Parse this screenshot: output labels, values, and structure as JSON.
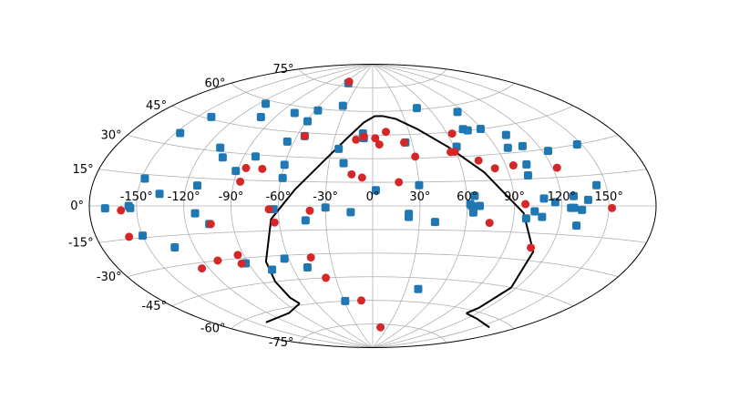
{
  "chart_data": {
    "type": "scatter",
    "projection": "aitoff",
    "grid": true,
    "x_ticks": [
      -150,
      -120,
      -90,
      -60,
      -30,
      0,
      30,
      60,
      90,
      120,
      150
    ],
    "y_ticks": [
      -75,
      -60,
      -45,
      -30,
      -15,
      0,
      15,
      30,
      45,
      60,
      75
    ],
    "x_tick_labels": [
      "-150°",
      "-120°",
      "-90°",
      "-60°",
      "-30°",
      "0°",
      "30°",
      "60°",
      "90°",
      "120°",
      "150°"
    ],
    "y_tick_labels": [
      "-75°",
      "-60°",
      "-45°",
      "-30°",
      "-15°",
      "0°",
      "15°",
      "30°",
      "45°",
      "60°",
      "75°"
    ],
    "colors": {
      "blue": "#1f77b4",
      "red": "#d62728",
      "boundary": "#000000",
      "grid": "#b0b0b0"
    },
    "series": [
      {
        "color": "#1f77b4",
        "marker": "square-rounded",
        "points": [
          [
            -51,
            77
          ],
          [
            -114,
            58
          ],
          [
            -77,
            56
          ],
          [
            -57,
            59
          ],
          [
            -34,
            63
          ],
          [
            -140,
            46
          ],
          [
            -102,
            51
          ],
          [
            -147,
            36
          ],
          [
            -59,
            52
          ],
          [
            -54,
            43
          ],
          [
            -65,
            39
          ],
          [
            -110,
            32
          ],
          [
            -104,
            27
          ],
          [
            -82,
            29
          ],
          [
            -60,
            25
          ],
          [
            -59,
            17
          ],
          [
            -91,
            20
          ],
          [
            -148,
            13
          ],
          [
            -113,
            11
          ],
          [
            -136,
            6
          ],
          [
            -155,
            0
          ],
          [
            -113,
            -4
          ],
          [
            -154,
            -1
          ],
          [
            -170,
            -1
          ],
          [
            -150,
            -14
          ],
          [
            -105,
            -10
          ],
          [
            -133,
            -21
          ],
          [
            -92,
            -33
          ],
          [
            -76,
            -38
          ],
          [
            -63,
            -2
          ],
          [
            -43,
            -9
          ],
          [
            -63,
            -32
          ],
          [
            -49,
            -38
          ],
          [
            -14,
            -4
          ],
          [
            -29,
            -60
          ],
          [
            -25,
            36
          ],
          [
            -20,
            27
          ],
          [
            -8,
            46
          ],
          [
            -7,
            43
          ],
          [
            25,
            40
          ],
          [
            48,
            61
          ],
          [
            84,
            56
          ],
          [
            75,
            46
          ],
          [
            78,
            45
          ],
          [
            89,
            45
          ],
          [
            98,
            33
          ],
          [
            62,
            36
          ],
          [
            104,
            40
          ],
          [
            109,
            33
          ],
          [
            104,
            23
          ],
          [
            102,
            17
          ],
          [
            124,
            29
          ],
          [
            147,
            30
          ],
          [
            144,
            10
          ],
          [
            137,
            3
          ],
          [
            128,
            5
          ],
          [
            128,
            -1
          ],
          [
            133,
            -2
          ],
          [
            131,
            -10
          ],
          [
            109,
            4
          ],
          [
            108,
            -6
          ],
          [
            98,
            -7
          ],
          [
            68,
            0
          ],
          [
            63,
            0
          ],
          [
            62,
            1
          ],
          [
            65,
            6
          ],
          [
            30,
            13
          ],
          [
            2,
            10
          ],
          [
            -30,
            -1
          ],
          [
            23,
            -5
          ],
          [
            40,
            -10
          ],
          [
            41,
            -52
          ],
          [
            23,
            -7
          ],
          [
            64,
            -4
          ],
          [
            116,
            2
          ],
          [
            103,
            -3
          ],
          [
            126,
            -1
          ]
        ]
      },
      {
        "color": "#d62728",
        "marker": "circle",
        "points": [
          [
            -53,
            78
          ],
          [
            -54,
            43
          ],
          [
            -13,
            42
          ],
          [
            -7,
            44
          ],
          [
            2,
            43
          ],
          [
            5,
            39
          ],
          [
            11,
            47
          ],
          [
            24,
            40
          ],
          [
            30,
            31
          ],
          [
            64,
            44
          ],
          [
            56,
            33
          ],
          [
            59,
            33
          ],
          [
            73,
            27
          ],
          [
            82,
            22
          ],
          [
            95,
            23
          ],
          [
            123,
            20
          ],
          [
            97,
            1
          ],
          [
            152,
            -1
          ],
          [
            -104,
            -10
          ],
          [
            -63,
            -10
          ],
          [
            -85,
            22
          ],
          [
            -86,
            14
          ],
          [
            -74,
            22
          ],
          [
            -14,
            20
          ],
          [
            -7,
            18
          ],
          [
            17,
            15
          ],
          [
            -94,
            -28
          ],
          [
            -95,
            -33
          ],
          [
            -110,
            -30
          ],
          [
            -125,
            -33
          ],
          [
            -38,
            -45
          ],
          [
            -44,
            -32
          ],
          [
            -66,
            -2
          ],
          [
            -40,
            -3
          ],
          [
            -12,
            -60
          ],
          [
            75,
            -10
          ],
          [
            107,
            -23
          ],
          [
            -159,
            -14
          ],
          [
            -160,
            -2
          ],
          [
            16,
            -77
          ]
        ]
      }
    ],
    "boundary": {
      "color": "#000000",
      "description": "closed curve across the upper center of the map",
      "left_branch": [
        [
          -77,
          -59
        ],
        [
          -80,
          -55
        ],
        [
          -80,
          -45
        ],
        [
          -77,
          -33
        ],
        [
          -65,
          -8
        ],
        [
          -50,
          10
        ],
        [
          -34,
          28
        ],
        [
          -20,
          43
        ],
        [
          -8,
          53
        ],
        [
          2,
          57
        ],
        [
          10,
          57
        ]
      ],
      "right_branch": [
        [
          10,
          57
        ],
        [
          22,
          55
        ],
        [
          38,
          48
        ],
        [
          56,
          36
        ],
        [
          74,
          20
        ],
        [
          96,
          -4
        ],
        [
          110,
          -25
        ],
        [
          116,
          -45
        ],
        [
          113,
          -58
        ],
        [
          110,
          -62
        ]
      ],
      "bottom_left": [
        [
          -77,
          -59
        ],
        [
          -100,
          -63
        ],
        [
          -140,
          -64
        ]
      ],
      "bottom_right": [
        [
          110,
          -62
        ],
        [
          130,
          -63
        ],
        [
          160,
          -64
        ]
      ]
    }
  }
}
